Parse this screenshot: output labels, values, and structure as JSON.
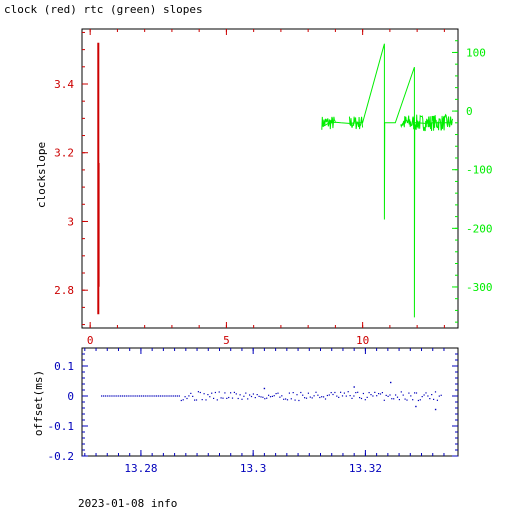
{
  "page": {
    "title": "clock (red) rtc (green) slopes",
    "footer": "2023-01-08 info"
  },
  "colors": {
    "frame": "#000000",
    "red": "#cc0000",
    "green": "#00ee00",
    "blue": "#0000bb"
  },
  "chart_data": [
    {
      "type": "line",
      "name": "slopes",
      "ylabel": "clockslope",
      "xlim": [
        -0.3,
        13.5
      ],
      "ylim_left": [
        2.69,
        3.56
      ],
      "ylim_right": [
        -370,
        140
      ],
      "grid": false,
      "x_ticks": [
        {
          "value": 0,
          "label": "0"
        },
        {
          "value": 5,
          "label": "5"
        },
        {
          "value": 10,
          "label": "10"
        }
      ],
      "y_ticks_left": [
        {
          "value": 2.8,
          "label": "2.8"
        },
        {
          "value": 3.0,
          "label": "3"
        },
        {
          "value": 3.2,
          "label": "3.2"
        },
        {
          "value": 3.4,
          "label": "3.4"
        }
      ],
      "y_ticks_right": [
        {
          "value": 100,
          "label": "100"
        },
        {
          "value": 0,
          "label": "0"
        },
        {
          "value": -100,
          "label": "-100"
        },
        {
          "value": -200,
          "label": "-200"
        },
        {
          "value": -300,
          "label": "-300"
        }
      ],
      "series": [
        {
          "color_key": "red",
          "axis": "left",
          "x": [
            0.3,
            0.3,
            0.3,
            0.31,
            0.31
          ],
          "y": [
            2.73,
            3.52,
            3.18,
            2.81,
            3.17
          ]
        },
        {
          "color_key": "green",
          "axis": "right",
          "noise_ranges": [
            [
              8.5,
              9.0,
              12
            ],
            [
              9.5,
              10.0,
              12
            ],
            [
              11.4,
              13.3,
              14
            ]
          ],
          "x": [
            8.5,
            8.6,
            8.7,
            8.8,
            9.0,
            9.2,
            9.5,
            9.8,
            10.0,
            10.8,
            10.8,
            10.81,
            11.2,
            11.9,
            11.9,
            11.91,
            12.0,
            12.3,
            12.6,
            12.9,
            13.3
          ],
          "y": [
            -20,
            -25,
            -22,
            -20,
            -19,
            -20,
            -21,
            -20,
            -20,
            115,
            -185,
            -20,
            -20,
            75,
            -352,
            -20,
            -20,
            -21,
            -20,
            -20,
            -20
          ]
        }
      ]
    },
    {
      "type": "scatter",
      "name": "offset",
      "ylabel": "offset(ms)",
      "xlim": [
        13.2695,
        13.3365
      ],
      "ylim": [
        -0.2,
        0.16
      ],
      "grid": false,
      "x_ticks": [
        {
          "value": 13.28,
          "label": "13.28"
        },
        {
          "value": 13.3,
          "label": "13.3"
        },
        {
          "value": 13.32,
          "label": "13.32"
        }
      ],
      "y_ticks": [
        {
          "value": 0.1,
          "label": "0.1"
        },
        {
          "value": 0,
          "label": "0"
        },
        {
          "value": -0.1,
          "label": "-0.1"
        },
        {
          "value": -0.2,
          "label": "-0.2"
        }
      ],
      "series": [
        {
          "color_key": "blue",
          "x_start": 13.273,
          "x_end": 13.3335,
          "quiet_until": 13.287,
          "points": 180,
          "noise_amplitude": 0.015,
          "outliers": [
            {
              "x": 13.302,
              "y": 0.025
            },
            {
              "x": 13.318,
              "y": 0.03
            },
            {
              "x": 13.3245,
              "y": 0.045
            },
            {
              "x": 13.329,
              "y": -0.035
            },
            {
              "x": 13.3325,
              "y": -0.045
            }
          ]
        }
      ]
    }
  ]
}
